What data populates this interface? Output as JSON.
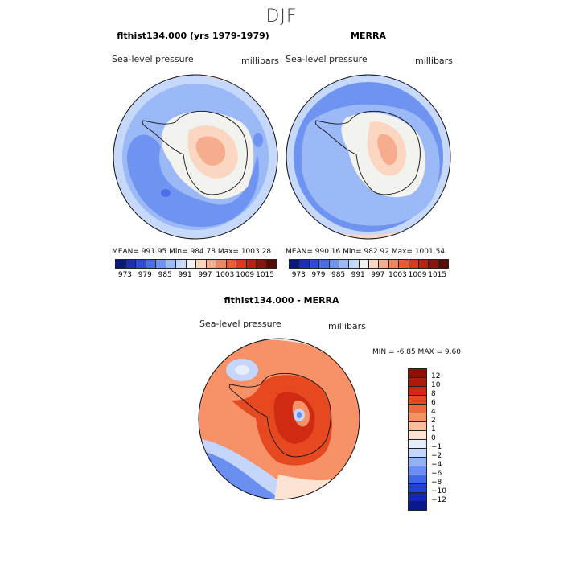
{
  "figure": {
    "title": "DJF"
  },
  "chart_data": [
    {
      "type": "heatmap",
      "panel": "top-left",
      "title": "flthist134.000 (yrs 1979-1979)",
      "variable_label": "Sea-level pressure",
      "units_label": "millibars",
      "stats": {
        "mean": "991.95",
        "min": "984.78",
        "max": "1003.28"
      },
      "stats_text": "MEAN= 991.95   Min= 984.78   Max= 1003.28",
      "colorbar_levels": [
        973,
        976,
        979,
        982,
        985,
        988,
        991,
        994,
        997,
        1000,
        1003,
        1006,
        1009,
        1012,
        1015
      ],
      "colorbar_tick_labels": [
        "973",
        "979",
        "985",
        "991",
        "997",
        "1003",
        "1009",
        "1015"
      ],
      "colorbar_colors": [
        "#0a1a7a",
        "#1c2eb4",
        "#2e4ad6",
        "#4a6fe8",
        "#6f93f0",
        "#9bb8f7",
        "#c6d9fb",
        "#f2f2ee",
        "#fbd6c1",
        "#f6ad8d",
        "#f08560",
        "#e95c36",
        "#d83b1f",
        "#b52413",
        "#8a140b",
        "#5c0a05"
      ]
    },
    {
      "type": "heatmap",
      "panel": "top-right",
      "title": "MERRA",
      "variable_label": "Sea-level pressure",
      "units_label": "millibars",
      "stats": {
        "mean": "990.16",
        "min": "982.92",
        "max": "1001.54"
      },
      "stats_text": "MEAN= 990.16   Min= 982.92   Max= 1001.54",
      "colorbar_levels": [
        973,
        976,
        979,
        982,
        985,
        988,
        991,
        994,
        997,
        1000,
        1003,
        1006,
        1009,
        1012,
        1015
      ],
      "colorbar_tick_labels": [
        "973",
        "979",
        "985",
        "991",
        "997",
        "1003",
        "1009",
        "1015"
      ]
    },
    {
      "type": "heatmap",
      "panel": "bottom",
      "title": "flthist134.000 - MERRA",
      "variable_label": "Sea-level pressure",
      "units_label": "millibars",
      "stats": {
        "min": "-6.85",
        "max": "9.60"
      },
      "stats_text": "MIN =   -6.85  MAX =     9.60",
      "colorbar_levels": [
        -12,
        -10,
        -8,
        -6,
        -4,
        -2,
        -1,
        0,
        1,
        2,
        4,
        6,
        8,
        10,
        12
      ],
      "colorbar_tick_labels": [
        "12",
        "10",
        "8",
        "6",
        "4",
        "2",
        "1",
        "0",
        "−1",
        "−2",
        "−4",
        "−6",
        "−8",
        "−10",
        "−12"
      ],
      "colorbar_colors": [
        "#8a0f08",
        "#b0180c",
        "#d02a12",
        "#e64820",
        "#f26a3c",
        "#f79168",
        "#fbbf9d",
        "#fde4d2",
        "#e6eefc",
        "#c4d6fb",
        "#93b2f6",
        "#6a8ff1",
        "#4066e9",
        "#2242d8",
        "#1027b8",
        "#0a1890"
      ]
    }
  ]
}
